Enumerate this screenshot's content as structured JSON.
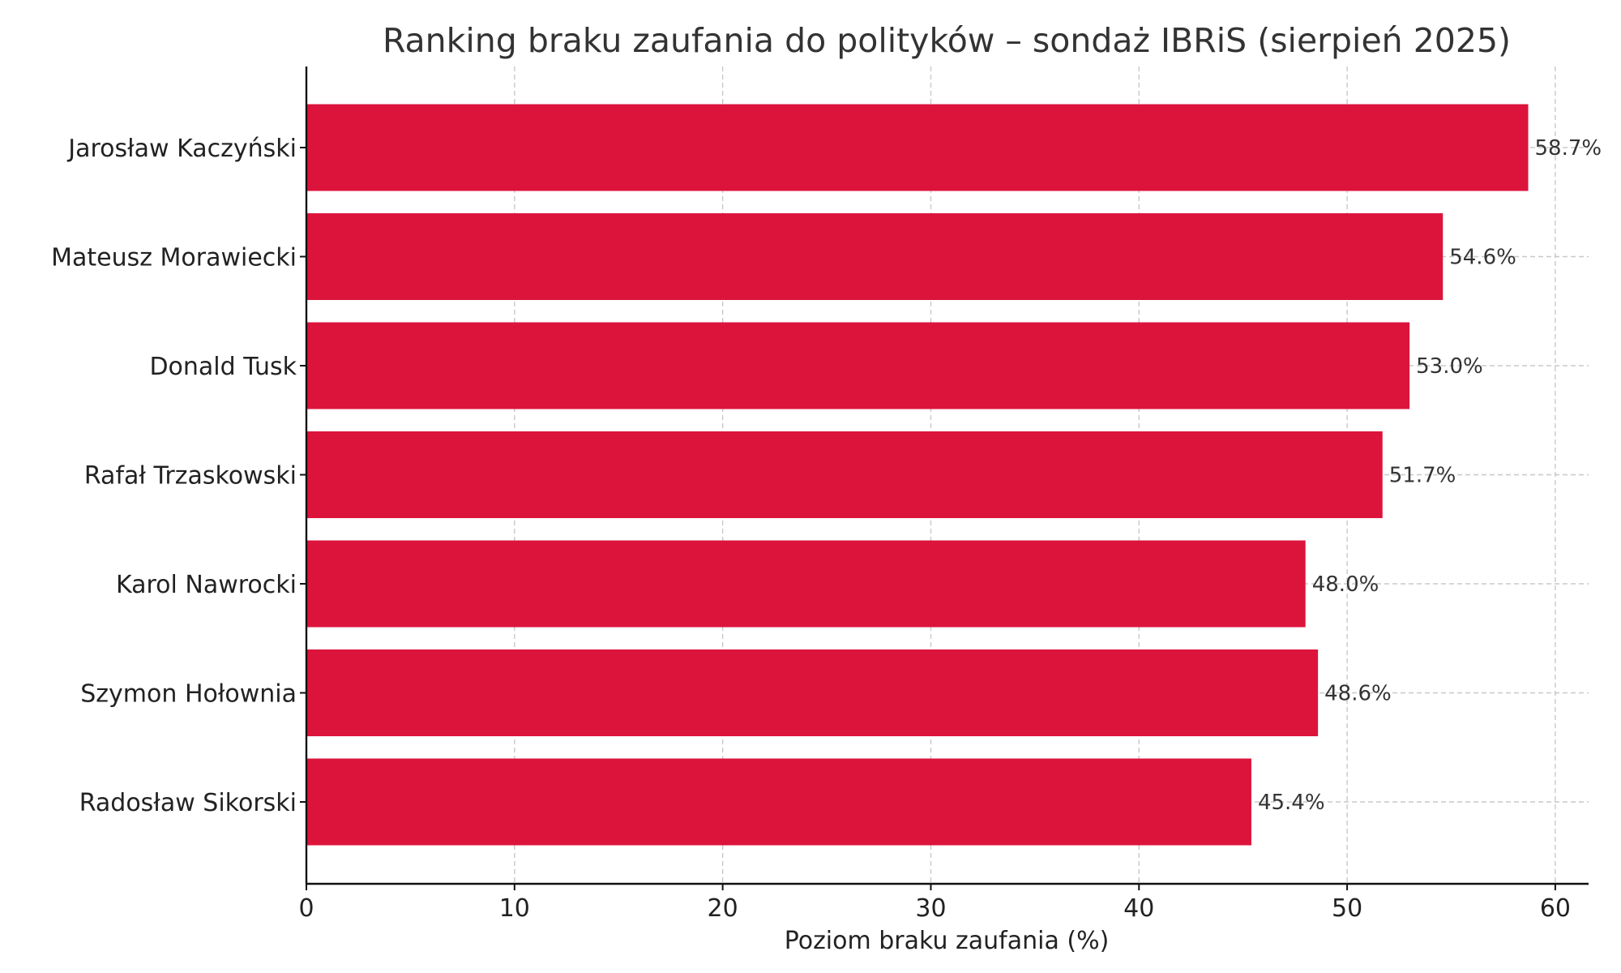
{
  "chart_data": {
    "type": "bar",
    "orientation": "horizontal",
    "title": "Ranking braku zaufania do polityków – sondaż IBRiS (sierpień 2025)",
    "xlabel": "Poziom braku zaufania (%)",
    "ylabel": "",
    "categories": [
      "Jarosław Kaczyński",
      "Mateusz Morawiecki",
      "Donald Tusk",
      "Rafał Trzaskowski",
      "Karol Nawrocki",
      "Szymon Hołownia",
      "Radosław Sikorski"
    ],
    "values": [
      58.7,
      54.6,
      53.0,
      51.7,
      48.0,
      48.6,
      45.4
    ],
    "value_labels": [
      "58.7%",
      "54.6%",
      "53.0%",
      "51.7%",
      "48.0%",
      "48.6%",
      "45.4%"
    ],
    "xlim": [
      0,
      61.6
    ],
    "xticks": [
      0,
      10,
      20,
      30,
      40,
      50,
      60
    ],
    "xtick_labels": [
      "0",
      "10",
      "20",
      "30",
      "40",
      "50",
      "60"
    ],
    "grid": true,
    "bar_color": "#dc143c"
  }
}
